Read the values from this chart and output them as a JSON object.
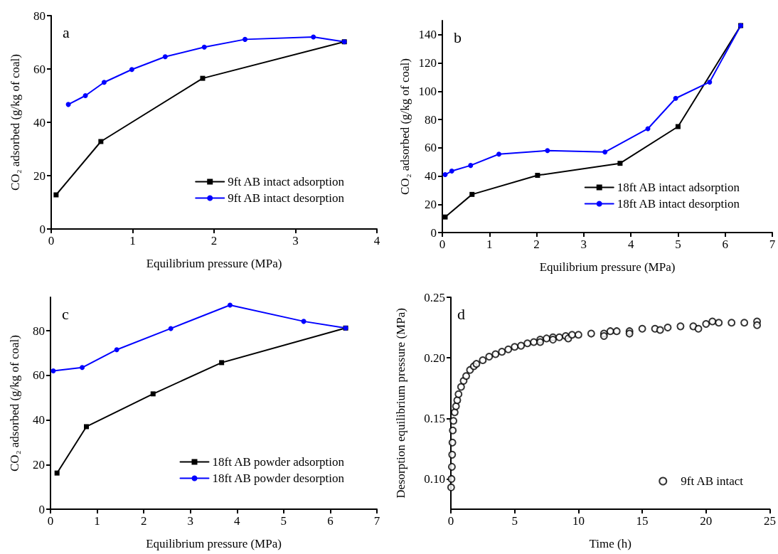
{
  "chart_data": [
    {
      "type": "line",
      "xlabel": "Equilibrium pressure (MPa)",
      "ylabel": "CO₂ adsorbed (g/kg of coal)",
      "annotations": [
        "a"
      ],
      "xlim": [
        0,
        4
      ],
      "xticks": [
        0,
        1,
        2,
        3,
        4
      ],
      "ylim": [
        0,
        80
      ],
      "yticks": [
        0,
        20,
        40,
        60,
        80
      ],
      "grid": false,
      "legend": "bottom right",
      "line_style": "solid",
      "series": [
        {
          "name": "9ft AB intact adsorption",
          "color": "#000000",
          "marker": "square",
          "x": [
            0.06,
            0.61,
            1.86,
            3.6
          ],
          "values": [
            12.8,
            32.8,
            56.5,
            70.2
          ]
        },
        {
          "name": "9ft AB intact desorption",
          "color": "#0000ff",
          "marker": "circle",
          "x": [
            0.21,
            0.42,
            0.65,
            0.99,
            1.4,
            1.88,
            2.38,
            3.22,
            3.6
          ],
          "values": [
            46.7,
            50,
            55,
            59.8,
            64.6,
            68.2,
            71.1,
            72,
            70.2
          ]
        }
      ]
    },
    {
      "type": "line",
      "xlabel": "Equilibrium pressure (MPa)",
      "ylabel": "CO₂ adsorbed (g/kg of coal)",
      "annotations": [
        "b"
      ],
      "xlim": [
        0,
        7
      ],
      "xticks": [
        0,
        1,
        2,
        3,
        4,
        5,
        6,
        7
      ],
      "ylim": [
        0,
        150
      ],
      "yticks": [
        0,
        20,
        40,
        60,
        80,
        100,
        120,
        140
      ],
      "grid": false,
      "legend": "bottom right",
      "line_style": "solid",
      "series": [
        {
          "name": "18ft AB intact adsorption",
          "color": "#000000",
          "marker": "square",
          "x": [
            0.06,
            0.63,
            2.02,
            3.77,
            5.0,
            6.33
          ],
          "values": [
            11,
            27,
            40.5,
            49,
            75,
            146.5
          ]
        },
        {
          "name": "18ft AB intact desorption",
          "color": "#0000ff",
          "marker": "circle",
          "x": [
            0.06,
            0.2,
            0.6,
            1.2,
            2.23,
            3.45,
            4.36,
            4.95,
            5.67,
            6.33
          ],
          "values": [
            41,
            43.5,
            47.5,
            55.5,
            58,
            57,
            73.5,
            95,
            106.5,
            146.5
          ]
        }
      ]
    },
    {
      "type": "line",
      "xlabel": "Equilibrium pressure (MPa)",
      "ylabel": "CO₂ adsorbed (g/kg of coal)",
      "annotations": [
        "c"
      ],
      "xlim": [
        0,
        7
      ],
      "xticks": [
        0,
        1,
        2,
        3,
        4,
        5,
        6,
        7
      ],
      "ylim": [
        0,
        95
      ],
      "yticks": [
        0,
        20,
        40,
        60,
        80
      ],
      "grid": false,
      "legend": "bottom right",
      "line_style": "solid",
      "series": [
        {
          "name": "18ft AB powder adsorption",
          "color": "#000000",
          "marker": "square",
          "x": [
            0.14,
            0.77,
            2.2,
            3.67,
            6.33
          ],
          "values": [
            16.2,
            37,
            51.7,
            65.7,
            81.2
          ]
        },
        {
          "name": "18ft AB powder desorption",
          "color": "#0000ff",
          "marker": "circle",
          "x": [
            0.06,
            0.68,
            1.42,
            2.58,
            3.85,
            5.43,
            6.33
          ],
          "values": [
            62,
            63.5,
            71.5,
            81,
            91.5,
            84.2,
            81.2
          ]
        }
      ]
    },
    {
      "type": "scatter",
      "xlabel": "Time (h)",
      "ylabel": "Desorption equilibrium pressure (MPa)",
      "annotations": [
        "d"
      ],
      "xlim": [
        0,
        25
      ],
      "xticks": [
        0,
        5,
        10,
        15,
        20,
        25
      ],
      "ylim": [
        0.075,
        0.25
      ],
      "yticks": [
        {
          "value": 0.1,
          "label": "0.10"
        },
        0.15,
        {
          "value": 0.2,
          "label": "0.20"
        },
        0.25
      ],
      "grid": false,
      "legend": "bottom right",
      "marker": "circle",
      "series": [
        {
          "name": "9ft AB intact",
          "color": "#000000",
          "x": [
            0.02,
            0.05,
            0.08,
            0.1,
            0.12,
            0.15,
            0.2,
            0.3,
            0.4,
            0.5,
            0.6,
            0.8,
            1.0,
            1.2,
            1.5,
            1.8,
            2.0,
            2.5,
            3,
            3.5,
            4,
            4.5,
            5,
            5.5,
            6,
            6.5,
            7,
            7,
            7.5,
            8,
            8,
            8.5,
            9,
            9.2,
            9.5,
            10,
            11,
            12,
            12,
            12.5,
            13,
            14,
            14,
            15,
            16,
            16.4,
            17,
            18,
            19,
            19.4,
            20,
            20.5,
            21,
            22,
            23,
            24,
            24
          ],
          "values": [
            0.093,
            0.1,
            0.11,
            0.12,
            0.13,
            0.14,
            0.148,
            0.155,
            0.16,
            0.165,
            0.17,
            0.176,
            0.181,
            0.185,
            0.19,
            0.193,
            0.195,
            0.198,
            0.201,
            0.203,
            0.205,
            0.207,
            0.209,
            0.21,
            0.212,
            0.213,
            0.215,
            0.213,
            0.216,
            0.217,
            0.215,
            0.217,
            0.218,
            0.216,
            0.219,
            0.219,
            0.22,
            0.22,
            0.218,
            0.222,
            0.222,
            0.222,
            0.22,
            0.224,
            0.224,
            0.223,
            0.225,
            0.226,
            0.226,
            0.224,
            0.228,
            0.23,
            0.229,
            0.229,
            0.229,
            0.23,
            0.227
          ]
        }
      ]
    }
  ]
}
